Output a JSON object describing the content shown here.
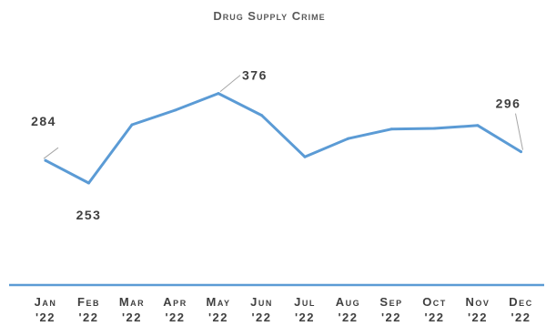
{
  "chart_data": {
    "type": "line",
    "title": "Drug Supply Crime",
    "categories": [
      [
        "Jan",
        "'22"
      ],
      [
        "Feb",
        "'22"
      ],
      [
        "Mar",
        "'22"
      ],
      [
        "Apr",
        "'22"
      ],
      [
        "May",
        "'22"
      ],
      [
        "Jun",
        "'22"
      ],
      [
        "Jul",
        "'22"
      ],
      [
        "Aug",
        "'22"
      ],
      [
        "Sep",
        "'22"
      ],
      [
        "Oct",
        "'22"
      ],
      [
        "Nov",
        "'22"
      ],
      [
        "Dec",
        "'22"
      ]
    ],
    "values": [
      284,
      253,
      333,
      353,
      376,
      346,
      289,
      314,
      327,
      328,
      332,
      296
    ],
    "data_labels": [
      {
        "index": 0,
        "text": "284"
      },
      {
        "index": 1,
        "text": "253"
      },
      {
        "index": 4,
        "text": "376"
      },
      {
        "index": 11,
        "text": "296"
      }
    ],
    "line_color": "#5b9bd5",
    "axis_color": "#5b9bd5",
    "grid": false,
    "legend": "none"
  }
}
